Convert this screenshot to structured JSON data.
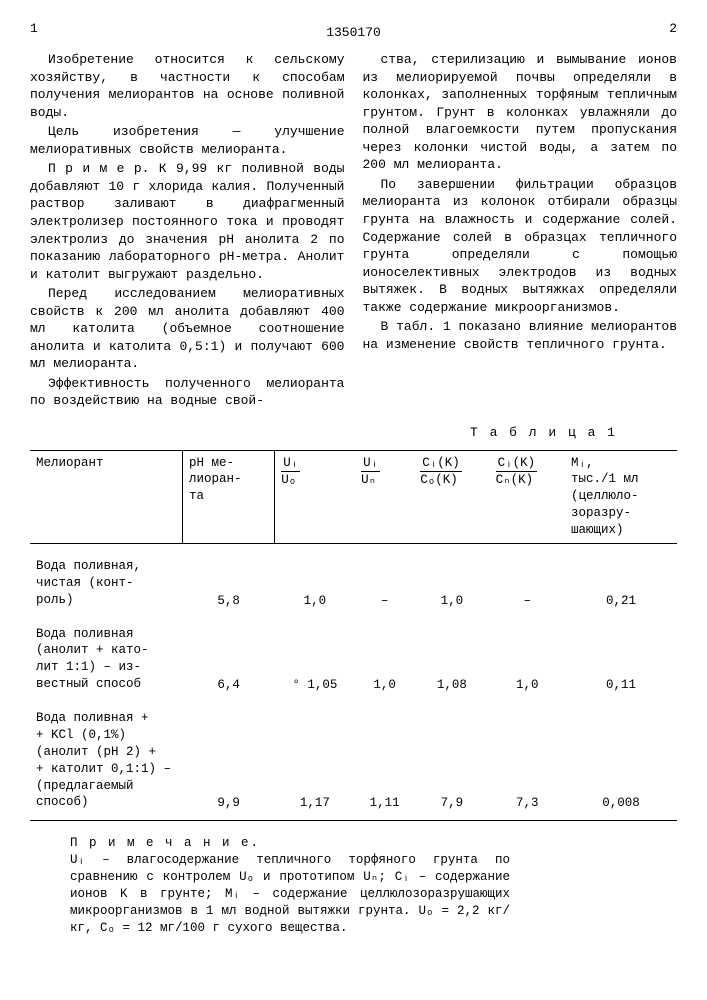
{
  "header": {
    "page_left": "1",
    "page_right": "2",
    "doc_number": "1350170"
  },
  "left_col": {
    "p1": "Изобретение относится к сельскому хозяйству, в частности к способам получения мелиорантов на основе поливной воды.",
    "p2": "Цель изобретения — улучшение мелиоративных свойств мелиоранта.",
    "p3": "П р и м е р. К 9,99 кг поливной воды добавляют 10 г хлорида калия. Полученный раствор заливают в диафрагменный электролизер постоянного тока и проводят электролиз до значения pH анолита 2 по показанию лабораторного pH-метра. Анолит и католит выгружают раздельно.",
    "p4": "Перед исследованием мелиоративных свойств к 200 мл анолита добавляют 400 мл католита (объемное соотношение анолита и католита 0,5:1) и получают 600 мл мелиоранта.",
    "p5": "Эффективность полученного мелиоранта по воздействию на водные свой-"
  },
  "right_col": {
    "p1": "ства, стерилизацию и вымывание ионов из мелиорируемой почвы определяли в колонках, заполненных торфяным тепличным грунтом. Грунт в колонках увлажняли до полной влагоемкости путем пропускания через колонки чистой воды, а затем по 200 мл мелиоранта.",
    "p2": "По завершении фильтрации образцов мелиоранта из колонок отбирали образцы грунта на влажность и содержание солей. Содержание солей в образцах тепличного грунта определяли с помощью ионоселективных электродов из водных вытяжек. В водных вытяжках определяли также содержание микроорганизмов.",
    "p3": "В табл. 1 показано влияние мелиорантов на изменение свойств тепличного грунта."
  },
  "table": {
    "caption": "Т а б л и ц а 1",
    "headers": {
      "c1": "Мелиорант",
      "c2": "pH ме-\nлиоран-\nта",
      "c3_top": "Uᵢ",
      "c3_bot": "Uₒ",
      "c4_top": "Uᵢ",
      "c4_bot": "Uₙ",
      "c5_top": "Cᵢ(K)",
      "c5_bot": "Cₒ(K)",
      "c6_top": "Cᵢ(K)",
      "c6_bot": "Cₙ(K)",
      "c7": "Mᵢ,\nтыс./1 мл\n(целлюло-\nзоразру-\nшающих)"
    },
    "rows": [
      {
        "label": "Вода поливная,\nчистая (конт-\nроль)",
        "ph": "5,8",
        "c3": "1,0",
        "c4": "–",
        "c5": "1,0",
        "c6": "–",
        "c7": "0,21"
      },
      {
        "label": "Вода поливная\n(анолит + като-\nлит 1:1) – из-\nвестный способ",
        "ph": "6,4",
        "c3": "° 1,05",
        "c4": "1,0",
        "c5": "1,08",
        "c6": "1,0",
        "c7": "0,11"
      },
      {
        "label": "Вода поливная +\n+ KCl (0,1%)\n(анолит (pH 2) +\n+ католит 0,1:1) –\n(предлагаемый\nспособ)",
        "ph": "9,9",
        "c3": "1,17",
        "c4": "1,11",
        "c5": "7,9",
        "c6": "7,3",
        "c7": "0,008"
      }
    ]
  },
  "note": {
    "label": "П р и м е ч а н и е.",
    "body": "Uᵢ – влагосодержание тепличного торфяного грунта по сравнению с контролем Uₒ и прототипом Uₙ; Cᵢ – содержание ионов K в грунте; Mᵢ – содержание целлюлозоразрушающих микроорганизмов в 1 мл водной вытяжки грунта. Uₒ = 2,2 кг/кг, Cₒ = 12 мг/100 г сухого вещества."
  }
}
